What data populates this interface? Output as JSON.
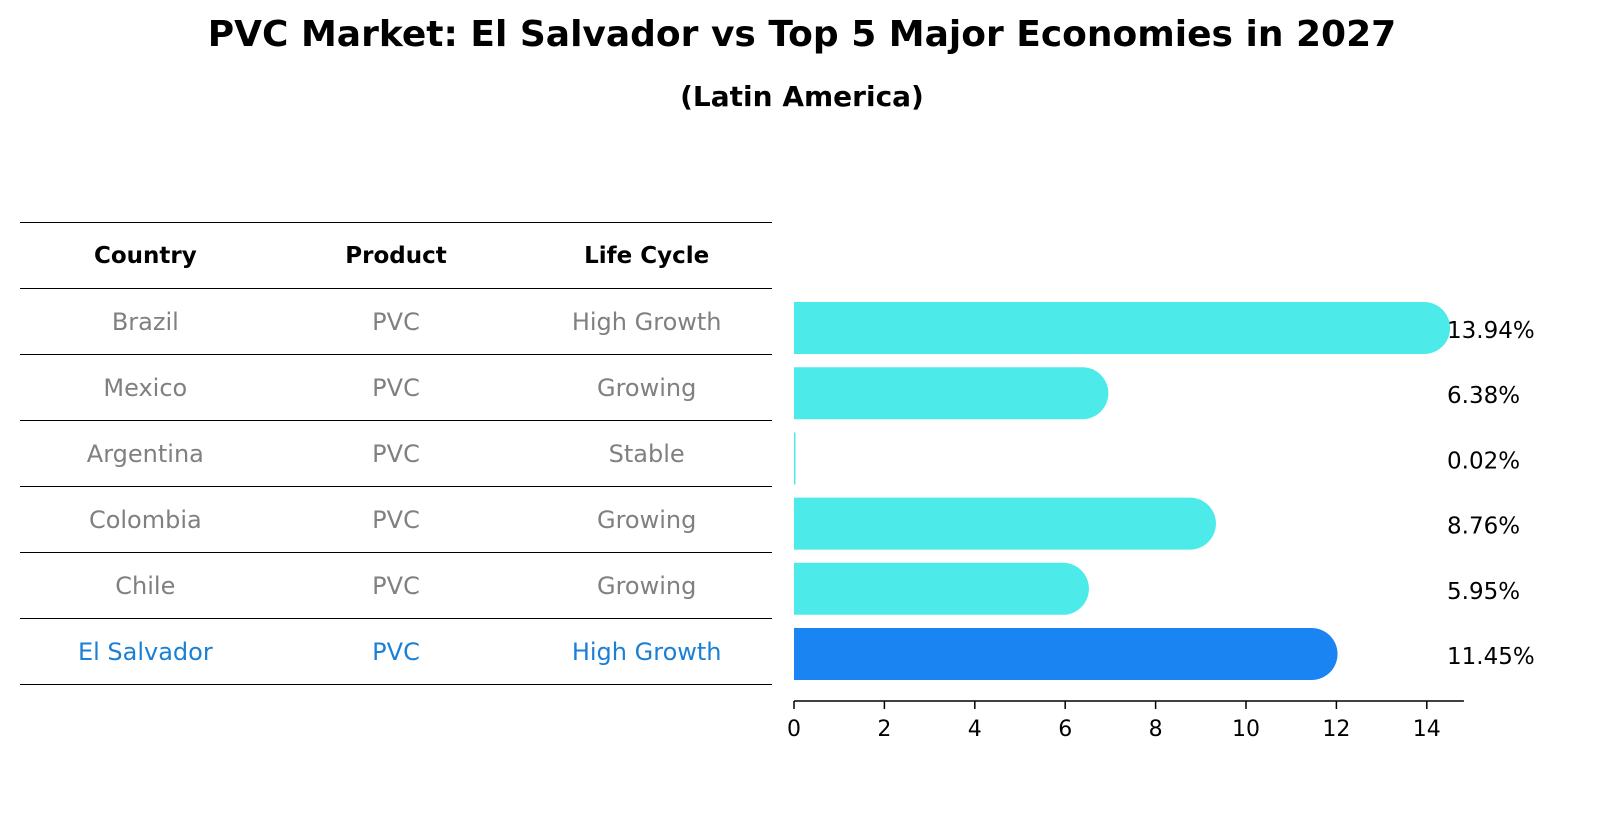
{
  "title": "PVC Market: El Salvador vs Top 5 Major Economies in 2027",
  "subtitle": "(Latin America)",
  "table": {
    "headers": [
      "Country",
      "Product",
      "Life Cycle"
    ],
    "rows": [
      {
        "country": "Brazil",
        "product": "PVC",
        "life_cycle": "High Growth"
      },
      {
        "country": "Mexico",
        "product": "PVC",
        "life_cycle": "Growing"
      },
      {
        "country": "Argentina",
        "product": "PVC",
        "life_cycle": "Stable"
      },
      {
        "country": "Colombia",
        "product": "PVC",
        "life_cycle": "Growing"
      },
      {
        "country": "Chile",
        "product": "PVC",
        "life_cycle": "Growing"
      },
      {
        "country": "El Salvador",
        "product": "PVC",
        "life_cycle": "High Growth"
      }
    ]
  },
  "chart_data": {
    "type": "bar",
    "orientation": "horizontal",
    "categories": [
      "Brazil",
      "Mexico",
      "Argentina",
      "Colombia",
      "Chile",
      "El Salvador"
    ],
    "values": [
      13.94,
      6.38,
      0.02,
      8.76,
      5.95,
      11.45
    ],
    "value_labels": [
      "13.94%",
      "6.38%",
      "0.02%",
      "8.76%",
      "5.95%",
      "11.45%"
    ],
    "xlim": [
      0,
      14.6
    ],
    "xticks": [
      0,
      2,
      4,
      6,
      8,
      10,
      12,
      14
    ],
    "highlight_index": 5,
    "colors": {
      "default": "#4deaea",
      "highlight": "#1a84f2"
    },
    "grid": false
  }
}
